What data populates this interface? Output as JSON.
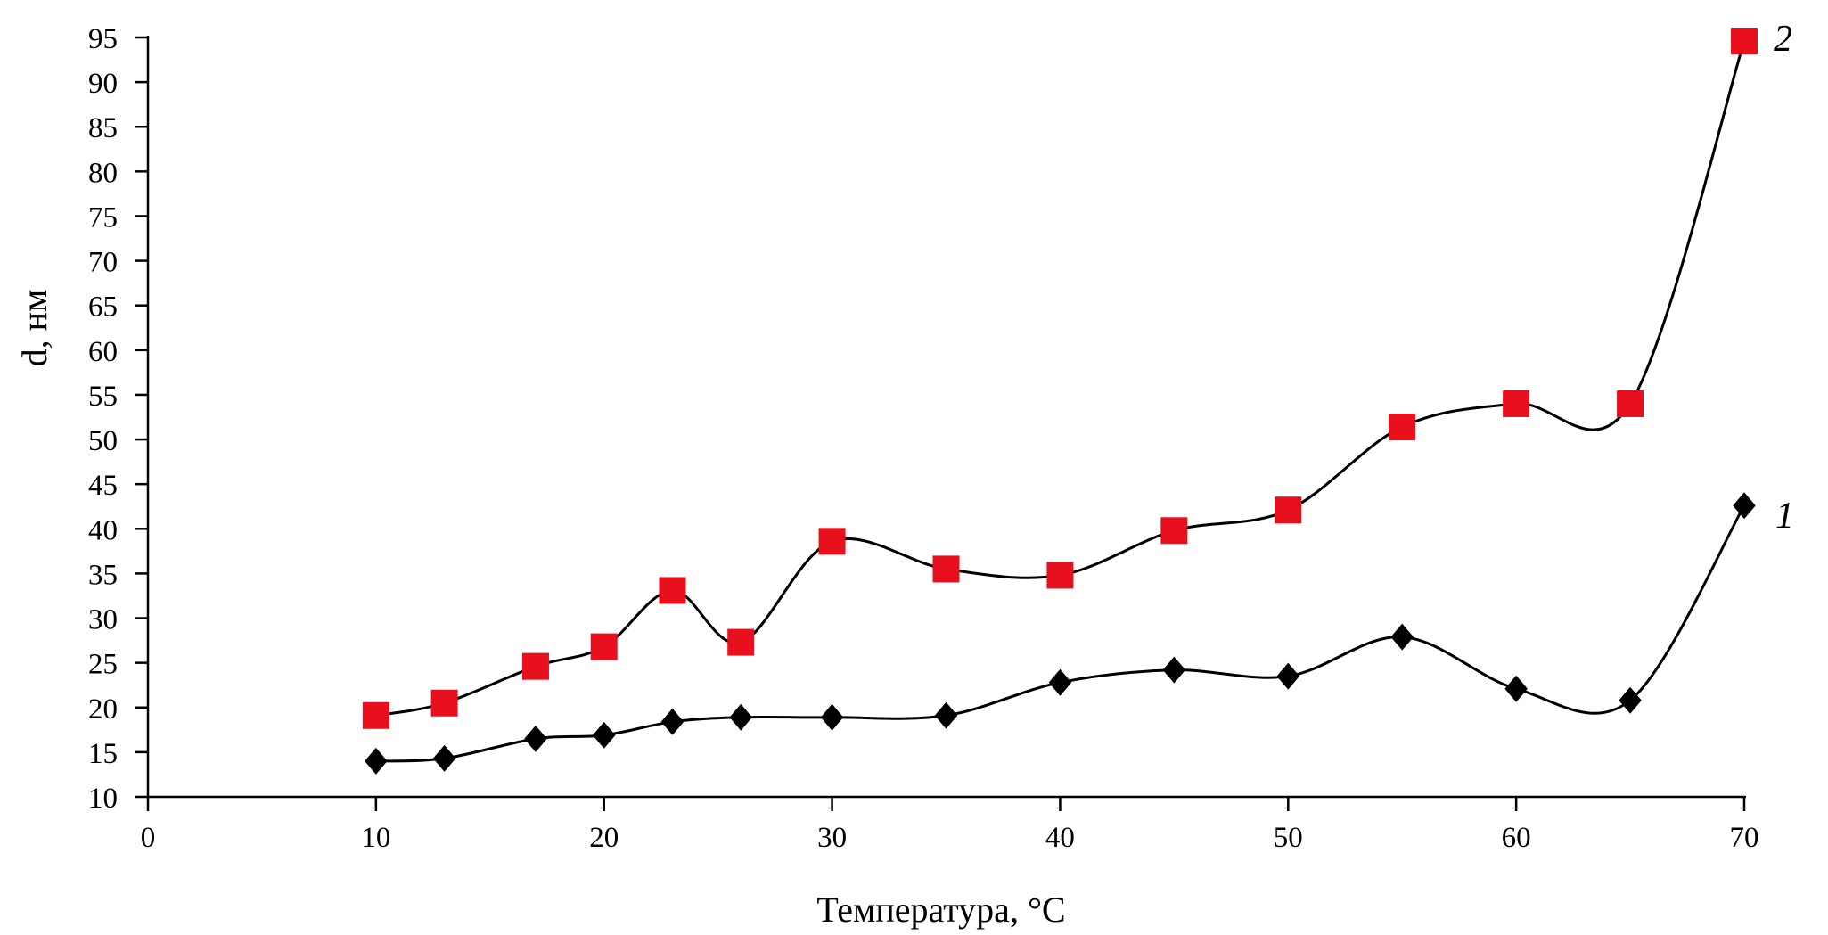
{
  "chart_data": {
    "type": "line",
    "title": "",
    "xlabel": "Температура, °С",
    "ylabel": "d, нм",
    "xlim": [
      0,
      70
    ],
    "ylim": [
      10,
      95
    ],
    "xticks": [
      0,
      10,
      20,
      30,
      40,
      50,
      60,
      70
    ],
    "yticks": [
      10,
      15,
      20,
      25,
      30,
      35,
      40,
      45,
      50,
      55,
      60,
      65,
      70,
      75,
      80,
      85,
      90,
      95
    ],
    "grid": false,
    "series": [
      {
        "name": "1",
        "marker": "diamond",
        "marker_color": "#000000",
        "line_color": "#000000",
        "x": [
          10,
          13,
          17,
          20,
          23,
          26,
          30,
          35,
          40,
          45,
          50,
          55,
          60,
          65,
          70
        ],
        "y": [
          14,
          14.3,
          16.5,
          16.9,
          18.4,
          18.9,
          18.9,
          19.1,
          22.8,
          24.2,
          23.5,
          27.9,
          22.1,
          20.8,
          42.6
        ]
      },
      {
        "name": "2",
        "marker": "square",
        "marker_color": "#e8101c",
        "line_color": "#000000",
        "x": [
          10,
          13,
          17,
          20,
          23,
          26,
          30,
          35,
          40,
          45,
          50,
          55,
          60,
          65,
          70
        ],
        "y": [
          19.1,
          20.5,
          24.6,
          26.8,
          33.1,
          27.3,
          38.6,
          35.5,
          34.8,
          39.8,
          42.1,
          51.4,
          54.0,
          54.0,
          94.6
        ]
      }
    ]
  }
}
